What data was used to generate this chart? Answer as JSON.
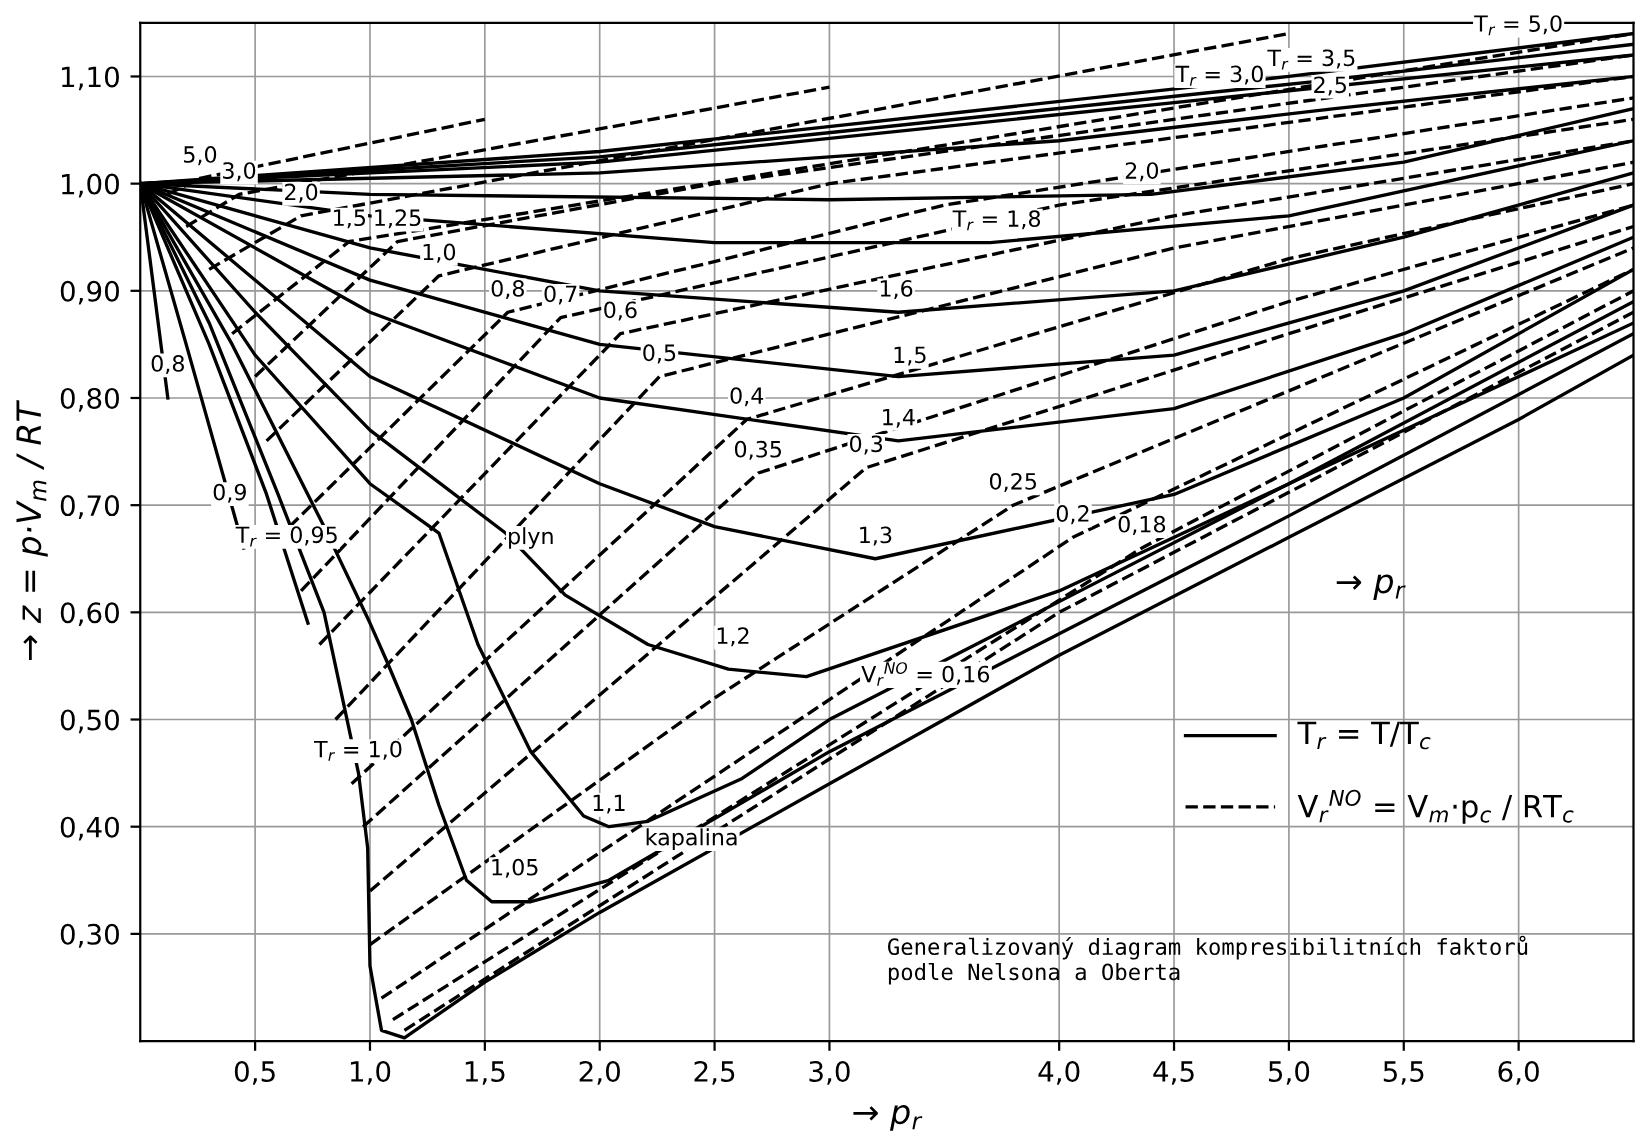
{
  "chart_data": {
    "type": "line",
    "xlabel": "→ p$_{r}$",
    "ylabel": "→ z = p·V$_{m}$ / RT",
    "xlim": [
      0,
      6.5
    ],
    "ylim": [
      0.2,
      1.15
    ],
    "xticks": [
      {
        "value": 0.5,
        "label": "0,5"
      },
      {
        "value": 1.0,
        "label": "1,0"
      },
      {
        "value": 1.5,
        "label": "1,5"
      },
      {
        "value": 2.0,
        "label": "2,0"
      },
      {
        "value": 2.5,
        "label": "2,5"
      },
      {
        "value": 3.0,
        "label": "3,0"
      },
      {
        "value": 4.0,
        "label": "4,0"
      },
      {
        "value": 4.5,
        "label": "4,5"
      },
      {
        "value": 5.0,
        "label": "5,0"
      },
      {
        "value": 5.5,
        "label": "5,5"
      },
      {
        "value": 6.0,
        "label": "6,0"
      }
    ],
    "yticks": [
      {
        "value": 0.3,
        "label": "0,30"
      },
      {
        "value": 0.4,
        "label": "0,40"
      },
      {
        "value": 0.5,
        "label": "0,50"
      },
      {
        "value": 0.6,
        "label": "0,60"
      },
      {
        "value": 0.7,
        "label": "0,70"
      },
      {
        "value": 0.8,
        "label": "0,80"
      },
      {
        "value": 0.9,
        "label": "0,90"
      },
      {
        "value": 1.0,
        "label": "1,00"
      },
      {
        "value": 1.1,
        "label": "1,10"
      }
    ],
    "grid": true,
    "series": [
      {
        "color": "#000000",
        "line_style": "solid",
        "x": [
          0,
          0.06,
          0.12
        ],
        "values": [
          1.0,
          0.9,
          0.8
        ]
      },
      {
        "color": "#000000",
        "line_style": "solid",
        "x": [
          0,
          0.2,
          0.45
        ],
        "values": [
          1.0,
          0.85,
          0.66
        ]
      },
      {
        "color": "#000000",
        "line_style": "solid",
        "x": [
          0,
          0.3,
          0.55,
          0.73
        ],
        "values": [
          1.0,
          0.85,
          0.71,
          0.59
        ]
      },
      {
        "color": "#000000",
        "line_style": "solid",
        "x": [
          0,
          0.3,
          0.6,
          0.8,
          0.95,
          0.99,
          1.0,
          1.05,
          1.15,
          1.5,
          2.0,
          3.0,
          4.0,
          5.0,
          6.0,
          6.5
        ],
        "values": [
          1.0,
          0.87,
          0.71,
          0.6,
          0.45,
          0.38,
          0.27,
          0.21,
          0.203,
          0.255,
          0.32,
          0.44,
          0.56,
          0.67,
          0.78,
          0.84
        ]
      },
      {
        "color": "#000000",
        "line_style": "solid",
        "x": [
          0,
          0.4,
          0.8,
          1.0,
          1.07,
          1.18,
          1.3,
          1.42,
          1.53,
          1.7,
          2.04,
          3.0,
          4.0,
          5.0,
          6.5
        ],
        "values": [
          1.0,
          0.85,
          0.68,
          0.59,
          0.556,
          0.5,
          0.42,
          0.35,
          0.33,
          0.33,
          0.35,
          0.47,
          0.58,
          0.69,
          0.86
        ]
      },
      {
        "color": "#000000",
        "line_style": "solid",
        "x": [
          0,
          0.5,
          1.0,
          1.3,
          1.47,
          1.7,
          1.93,
          2.04,
          2.21,
          2.62,
          3.0,
          4.0,
          5.0,
          6.5
        ],
        "values": [
          1.0,
          0.84,
          0.72,
          0.674,
          0.57,
          0.47,
          0.41,
          0.4,
          0.405,
          0.445,
          0.5,
          0.61,
          0.72,
          0.87
        ]
      },
      {
        "color": "#000000",
        "line_style": "solid",
        "x": [
          0,
          0.5,
          1.0,
          1.59,
          1.85,
          2.21,
          2.56,
          2.9,
          4.0,
          5.0,
          6.5
        ],
        "values": [
          1.0,
          0.88,
          0.77,
          0.674,
          0.616,
          0.57,
          0.547,
          0.54,
          0.62,
          0.72,
          0.89
        ]
      },
      {
        "color": "#000000",
        "line_style": "solid",
        "x": [
          0,
          1.0,
          2.0,
          2.5,
          3.2,
          4.5,
          5.5,
          6.5
        ],
        "values": [
          1.0,
          0.82,
          0.72,
          0.68,
          0.65,
          0.71,
          0.8,
          0.92
        ]
      },
      {
        "color": "#000000",
        "line_style": "solid",
        "x": [
          0,
          1.0,
          2.0,
          3.3,
          4.5,
          5.5,
          6.5
        ],
        "values": [
          1.0,
          0.88,
          0.8,
          0.76,
          0.79,
          0.86,
          0.95
        ]
      },
      {
        "color": "#000000",
        "line_style": "solid",
        "x": [
          0,
          1.0,
          2.0,
          3.3,
          4.5,
          5.5,
          6.5
        ],
        "values": [
          1.0,
          0.91,
          0.85,
          0.82,
          0.84,
          0.9,
          0.98
        ]
      },
      {
        "color": "#000000",
        "line_style": "solid",
        "x": [
          0,
          1.0,
          2.0,
          3.3,
          4.5,
          5.5,
          6.5
        ],
        "values": [
          1.0,
          0.94,
          0.9,
          0.88,
          0.9,
          0.95,
          1.01
        ]
      },
      {
        "color": "#000000",
        "line_style": "solid",
        "x": [
          0,
          1.0,
          2.5,
          3.7,
          5.0,
          6.5
        ],
        "values": [
          1.0,
          0.97,
          0.945,
          0.945,
          0.97,
          1.04
        ]
      },
      {
        "color": "#000000",
        "line_style": "solid",
        "x": [
          0,
          1.0,
          3.0,
          4.4,
          5.5,
          6.5
        ],
        "values": [
          1.0,
          0.99,
          0.985,
          0.99,
          1.02,
          1.07
        ]
      },
      {
        "color": "#000000",
        "line_style": "solid",
        "x": [
          0,
          2.0,
          4.0,
          5.2,
          6.5
        ],
        "values": [
          1.0,
          1.01,
          1.04,
          1.07,
          1.1
        ]
      },
      {
        "color": "#000000",
        "line_style": "solid",
        "x": [
          0,
          2.0,
          4.7,
          6.5
        ],
        "values": [
          1.0,
          1.02,
          1.08,
          1.12
        ]
      },
      {
        "color": "#000000",
        "line_style": "solid",
        "x": [
          0,
          2.0,
          5.1,
          6.5
        ],
        "values": [
          1.0,
          1.025,
          1.095,
          1.13
        ]
      },
      {
        "color": "#000000",
        "line_style": "solid",
        "x": [
          0,
          2.0,
          5.0,
          6.5
        ],
        "values": [
          1.0,
          1.03,
          1.1,
          1.14
        ]
      },
      {
        "color": "#000000",
        "line_style": "dashed",
        "x": [
          0.12,
          0.26,
          1.5
        ],
        "values": [
          0.99,
          1.005,
          1.06
        ]
      },
      {
        "color": "#000000",
        "line_style": "dashed",
        "x": [
          0.2,
          0.43,
          3.0
        ],
        "values": [
          0.96,
          0.99,
          1.09
        ]
      },
      {
        "color": "#000000",
        "line_style": "dashed",
        "x": [
          0.3,
          0.7,
          5.0
        ],
        "values": [
          0.92,
          0.97,
          1.14
        ]
      },
      {
        "color": "#000000",
        "line_style": "dashed",
        "x": [
          0.4,
          0.91,
          6.5
        ],
        "values": [
          0.86,
          0.946,
          1.14
        ]
      },
      {
        "color": "#000000",
        "line_style": "dashed",
        "x": [
          0.5,
          1.12,
          2.5,
          6.5
        ],
        "values": [
          0.82,
          0.946,
          1.0,
          1.12
        ]
      },
      {
        "color": "#000000",
        "line_style": "dashed",
        "x": [
          0.55,
          1.3,
          3.0,
          6.5
        ],
        "values": [
          0.76,
          0.914,
          1.0,
          1.1
        ]
      },
      {
        "color": "#000000",
        "line_style": "dashed",
        "x": [
          0.65,
          1.6,
          3.5,
          6.5
        ],
        "values": [
          0.68,
          0.88,
          0.98,
          1.08
        ]
      },
      {
        "color": "#000000",
        "line_style": "dashed",
        "x": [
          0.7,
          1.83,
          4.0,
          6.5
        ],
        "values": [
          0.62,
          0.875,
          0.98,
          1.06
        ]
      },
      {
        "color": "#000000",
        "line_style": "dashed",
        "x": [
          0.78,
          2.09,
          4.5,
          6.5
        ],
        "values": [
          0.57,
          0.86,
          0.97,
          1.04
        ]
      },
      {
        "color": "#000000",
        "line_style": "dashed",
        "x": [
          0.85,
          2.26,
          4.5,
          6.5
        ],
        "values": [
          0.5,
          0.82,
          0.94,
          1.02
        ]
      },
      {
        "color": "#000000",
        "line_style": "dashed",
        "x": [
          0.92,
          2.64,
          5.0,
          6.5
        ],
        "values": [
          0.44,
          0.78,
          0.93,
          1.0
        ]
      },
      {
        "color": "#000000",
        "line_style": "dashed",
        "x": [
          0.97,
          2.69,
          5.0,
          6.5
        ],
        "values": [
          0.4,
          0.73,
          0.89,
          0.98
        ]
      },
      {
        "color": "#000000",
        "line_style": "dashed",
        "x": [
          1.0,
          3.16,
          5.0,
          6.5
        ],
        "values": [
          0.34,
          0.735,
          0.86,
          0.96
        ]
      },
      {
        "color": "#000000",
        "line_style": "dashed",
        "x": [
          1.0,
          2.5,
          3.8,
          6.5
        ],
        "values": [
          0.29,
          0.52,
          0.7,
          0.94
        ]
      },
      {
        "color": "#000000",
        "line_style": "dashed",
        "x": [
          1.05,
          4.06,
          6.5
        ],
        "values": [
          0.24,
          0.67,
          0.92
        ]
      },
      {
        "color": "#000000",
        "line_style": "dashed",
        "x": [
          1.1,
          4.36,
          6.5
        ],
        "values": [
          0.22,
          0.66,
          0.9
        ]
      },
      {
        "color": "#000000",
        "line_style": "dashed",
        "x": [
          1.15,
          4.0,
          6.5
        ],
        "values": [
          0.21,
          0.6,
          0.88
        ]
      }
    ],
    "annotations": [
      "T$_{r}$ = T/T$_{c}$",
      "V$_{r}$$^{NO}$ = V$_{m}$·p$_{c}$ / RT$_{c}$",
      "→ p$_{r}$",
      "Generalizovaný diagram kompresibilitních faktorů\npodle Nelsona a Oberta",
      {
        "text": "0,8",
        "x": 0.12,
        "y": 0.81
      },
      {
        "text": "0,9",
        "x": 0.39,
        "y": 0.69
      },
      {
        "text": "T$_{r}$ = 0,95",
        "x": 0.64,
        "y": 0.65
      },
      {
        "text": "T$_{r}$ = 1,0",
        "x": 0.95,
        "y": 0.45
      },
      {
        "text": "1,05",
        "x": 1.63,
        "y": 0.34
      },
      {
        "text": "1,1",
        "x": 2.04,
        "y": 0.4
      },
      {
        "text": "1,2",
        "x": 2.58,
        "y": 0.556
      },
      {
        "text": "1,3",
        "x": 3.2,
        "y": 0.65
      },
      {
        "text": "1,4",
        "x": 3.3,
        "y": 0.76
      },
      {
        "text": "1,5",
        "x": 3.35,
        "y": 0.818
      },
      {
        "text": "1,6",
        "x": 3.29,
        "y": 0.88
      },
      {
        "text": "T$_{r}$ = 1,8",
        "x": 3.73,
        "y": 0.945
      },
      {
        "text": "2,0",
        "x": 4.36,
        "y": 0.99
      },
      {
        "text": "2,5",
        "x": 5.18,
        "y": 1.07
      },
      {
        "text": "T$_{r}$ = 3,0",
        "x": 4.7,
        "y": 1.08
      },
      {
        "text": "T$_{r}$ = 3,5",
        "x": 5.1,
        "y": 1.095
      },
      {
        "text": "T$_{r}$ = 5,0",
        "x": 6.0,
        "y": 1.127
      },
      {
        "text": "plyn",
        "x": 1.7,
        "y": 0.649
      },
      {
        "text": "kapalina",
        "x": 2.4,
        "y": 0.368
      },
      {
        "text": "5,0",
        "x": 0.26,
        "y": 1.005
      },
      {
        "text": "3,0",
        "x": 0.43,
        "y": 0.99
      },
      {
        "text": "2,0",
        "x": 0.7,
        "y": 0.97
      },
      {
        "text": "1,5",
        "x": 0.91,
        "y": 0.946
      },
      {
        "text": "1,25",
        "x": 1.12,
        "y": 0.946
      },
      {
        "text": "1,0",
        "x": 1.3,
        "y": 0.914
      },
      {
        "text": "0,8",
        "x": 1.6,
        "y": 0.88
      },
      {
        "text": "0,7",
        "x": 1.83,
        "y": 0.875
      },
      {
        "text": "0,6",
        "x": 2.09,
        "y": 0.86
      },
      {
        "text": "0,5",
        "x": 2.26,
        "y": 0.82
      },
      {
        "text": "0,4",
        "x": 2.64,
        "y": 0.78
      },
      {
        "text": "0,35",
        "x": 2.69,
        "y": 0.73
      },
      {
        "text": "0,3",
        "x": 3.16,
        "y": 0.735
      },
      {
        "text": "0,25",
        "x": 3.8,
        "y": 0.7
      },
      {
        "text": "0,2",
        "x": 4.06,
        "y": 0.67
      },
      {
        "text": "0,18",
        "x": 4.36,
        "y": 0.66
      },
      {
        "text": "V$_{r}$$^{NO}$ = 0,16",
        "x": 3.42,
        "y": 0.52
      }
    ]
  }
}
